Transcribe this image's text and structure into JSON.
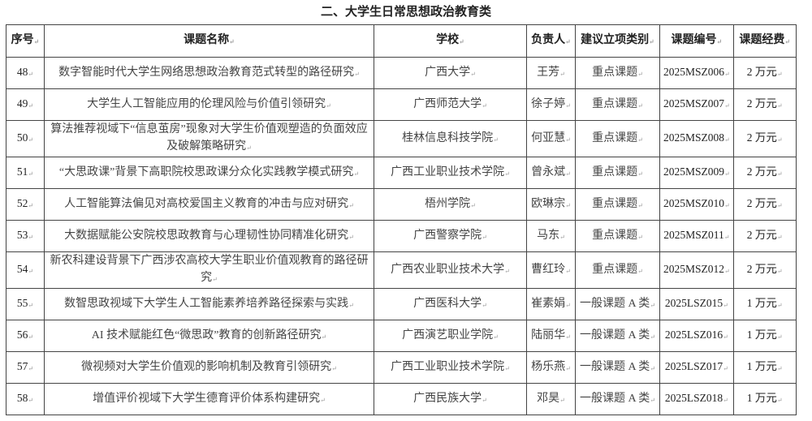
{
  "document": {
    "title": "二、大学生日常思想政治教育类",
    "table": {
      "headers": [
        "序号",
        "课题名称",
        "学校",
        "负责人",
        "建议立项类别",
        "课题编号",
        "课题经费"
      ],
      "rows": [
        {
          "no": "48",
          "topic": "数字智能时代大学生网络思想政治教育范式转型的路径研究",
          "school": "广西大学",
          "leader": "王芳",
          "category": "重点课题",
          "code": "2025MSZ006",
          "fee": "2 万元"
        },
        {
          "no": "49",
          "topic": "大学生人工智能应用的伦理风险与价值引领研究",
          "school": "广西师范大学",
          "leader": "徐子婷",
          "category": "重点课题",
          "code": "2025MSZ007",
          "fee": "2 万元"
        },
        {
          "no": "50",
          "topic": "算法推荐视域下“信息茧房”现象对大学生价值观塑造的负面效应及破解策略研究",
          "school": "桂林信息科技学院",
          "leader": "何亚慧",
          "category": "重点课题",
          "code": "2025MSZ008",
          "fee": "2 万元"
        },
        {
          "no": "51",
          "topic": "“大思政课”背景下高职院校思政课分众化实践教学模式研究",
          "school": "广西工业职业技术学院",
          "leader": "曾永斌",
          "category": "重点课题",
          "code": "2025MSZ009",
          "fee": "2 万元"
        },
        {
          "no": "52",
          "topic": "人工智能算法偏见对高校爱国主义教育的冲击与应对研究",
          "school": "梧州学院",
          "leader": "欧琳宗",
          "category": "重点课题",
          "code": "2025MSZ010",
          "fee": "2 万元"
        },
        {
          "no": "53",
          "topic": "大数据赋能公安院校思政教育与心理韧性协同精准化研究",
          "school": "广西警察学院",
          "leader": "马东",
          "category": "重点课题",
          "code": "2025MSZ011",
          "fee": "2 万元"
        },
        {
          "no": "54",
          "topic": "新农科建设背景下广西涉农高校大学生职业价值观教育的路径研究",
          "school": "广西农业职业技术大学",
          "leader": "曹红玲",
          "category": "重点课题",
          "code": "2025MSZ012",
          "fee": "2 万元"
        },
        {
          "no": "55",
          "topic": "数智思政视域下大学生人工智能素养培养路径探索与实践",
          "school": "广西医科大学",
          "leader": "崔素娟",
          "category": "一般课题 A 类",
          "code": "2025LSZ015",
          "fee": "1 万元"
        },
        {
          "no": "56",
          "topic": "AI 技术赋能红色“微思政”教育的创新路径研究",
          "school": "广西演艺职业学院",
          "leader": "陆丽华",
          "category": "一般课题 A 类",
          "code": "2025LSZ016",
          "fee": "1 万元"
        },
        {
          "no": "57",
          "topic": "微视频对大学生价值观的影响机制及教育引领研究",
          "school": "广西工业职业技术学院",
          "leader": "杨乐燕",
          "category": "一般课题 A 类",
          "code": "2025LSZ017",
          "fee": "1 万元"
        },
        {
          "no": "58",
          "topic": "增值评价视域下大学生德育评价体系构建研究",
          "school": "广西民族大学",
          "leader": "邓昊",
          "category": "一般课题 A 类",
          "code": "2025LSZ018",
          "fee": "1 万元"
        }
      ]
    }
  }
}
